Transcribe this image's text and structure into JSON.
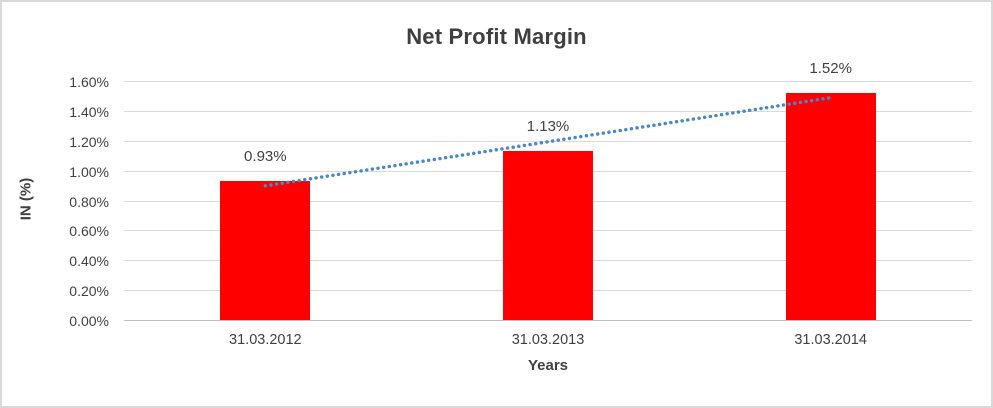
{
  "chart_data": {
    "type": "bar",
    "title": "Net Profit Margin",
    "xlabel": "Years",
    "ylabel": "IN (%)",
    "categories": [
      "31.03.2012",
      "31.03.2013",
      "31.03.2014"
    ],
    "values": [
      0.93,
      1.13,
      1.52
    ],
    "data_labels": [
      "0.93%",
      "1.13%",
      "1.52%"
    ],
    "y_ticks": [
      "0.00%",
      "0.20%",
      "0.40%",
      "0.60%",
      "0.80%",
      "1.00%",
      "1.20%",
      "1.40%",
      "1.60%"
    ],
    "y_tick_values": [
      0,
      0.2,
      0.4,
      0.6,
      0.8,
      1.0,
      1.2,
      1.4,
      1.6
    ],
    "ylim": [
      0,
      1.6
    ],
    "grid": "horizontal",
    "legend": "none",
    "trendline": {
      "type": "linear",
      "style": "dotted"
    }
  },
  "colors": {
    "bar": "#ff0000",
    "trendline": "#4a86c8",
    "gridline": "#d9d9d9",
    "axis_line": "#bfbfbf",
    "text": "#404040",
    "title_text": "#3f3f3f",
    "border": "#d9d9d9",
    "background": "#ffffff"
  }
}
